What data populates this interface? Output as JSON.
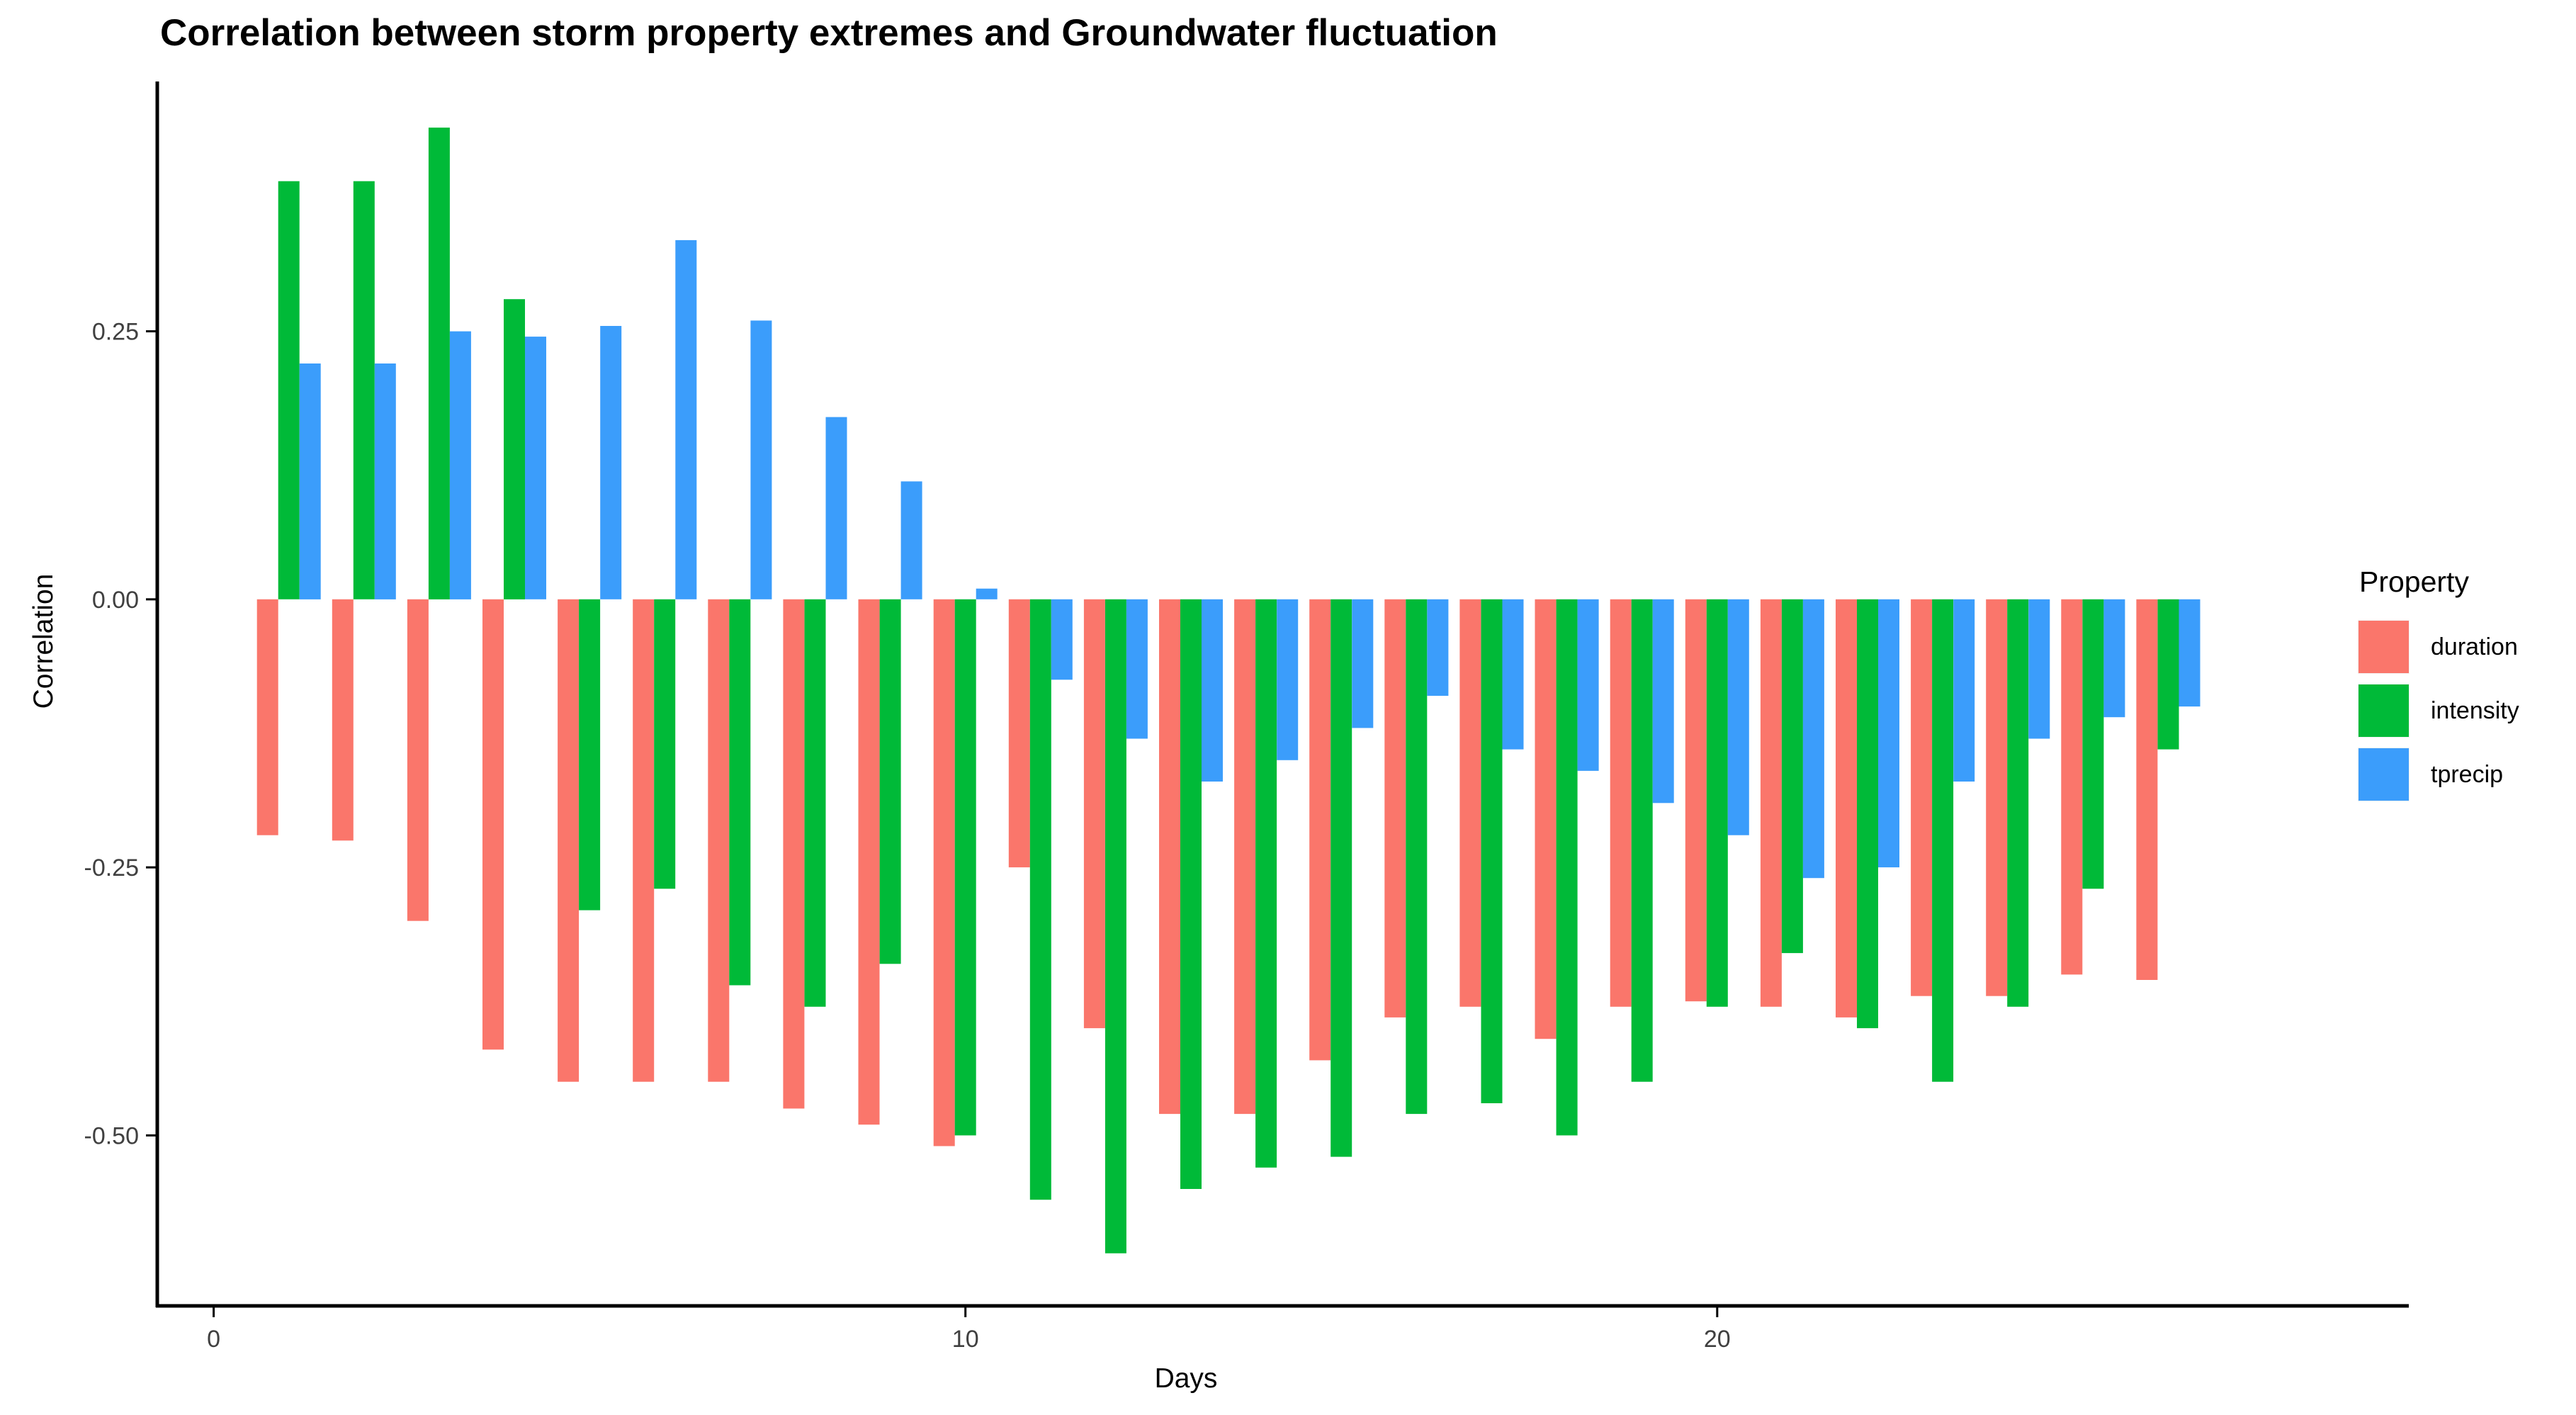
{
  "title": "Correlation between storm property extremes and Groundwater fluctuation",
  "chart_data": {
    "type": "bar",
    "title": "Correlation between storm property extremes and Groundwater fluctuation",
    "xlabel": "Days",
    "ylabel": "Correlation",
    "legend_title": "Property",
    "legend_position": "right",
    "grid": false,
    "xlim": [
      -0.75,
      28.54
    ],
    "ylim": [
      -0.659,
      0.483
    ],
    "x_ticks": [
      {
        "label": "0",
        "value": 0
      },
      {
        "label": "10",
        "value": 10
      },
      {
        "label": "20",
        "value": 20
      }
    ],
    "y_ticks": [
      {
        "label": "0.25",
        "value": 0.25
      },
      {
        "label": "0.00",
        "value": 0.0
      },
      {
        "label": "-0.25",
        "value": -0.25
      },
      {
        "label": "-0.50",
        "value": -0.5
      }
    ],
    "categories": [
      1,
      2,
      3,
      4,
      5,
      6,
      7,
      8,
      9,
      10,
      11,
      12,
      13,
      14,
      15,
      16,
      17,
      18,
      19,
      20,
      21,
      22,
      23,
      24,
      25,
      26
    ],
    "series": [
      {
        "name": "duration",
        "color": "#FA766B",
        "values": [
          -0.22,
          -0.225,
          -0.3,
          -0.42,
          -0.45,
          -0.45,
          -0.45,
          -0.475,
          -0.49,
          -0.51,
          -0.25,
          -0.4,
          -0.48,
          -0.48,
          -0.43,
          -0.39,
          -0.38,
          -0.41,
          -0.38,
          -0.375,
          -0.38,
          -0.39,
          -0.37,
          -0.37,
          -0.35,
          -0.355
        ]
      },
      {
        "name": "intensity",
        "color": "#00BA38",
        "values": [
          0.39,
          0.39,
          0.44,
          0.28,
          -0.29,
          -0.27,
          -0.36,
          -0.38,
          -0.34,
          -0.5,
          -0.56,
          -0.61,
          -0.55,
          -0.53,
          -0.52,
          -0.48,
          -0.47,
          -0.5,
          -0.45,
          -0.38,
          -0.33,
          -0.4,
          -0.45,
          -0.38,
          -0.27,
          -0.14
        ]
      },
      {
        "name": "tprecip",
        "color": "#3B9DFB",
        "values": [
          0.22,
          0.22,
          0.25,
          0.245,
          0.255,
          0.335,
          0.26,
          0.17,
          0.11,
          0.01,
          -0.075,
          -0.13,
          -0.17,
          -0.15,
          -0.12,
          -0.09,
          -0.14,
          -0.16,
          -0.19,
          -0.22,
          -0.26,
          -0.25,
          -0.17,
          -0.13,
          -0.11,
          -0.1
        ]
      }
    ],
    "axis_color": "#000000",
    "tick_label_color": "#404040"
  }
}
